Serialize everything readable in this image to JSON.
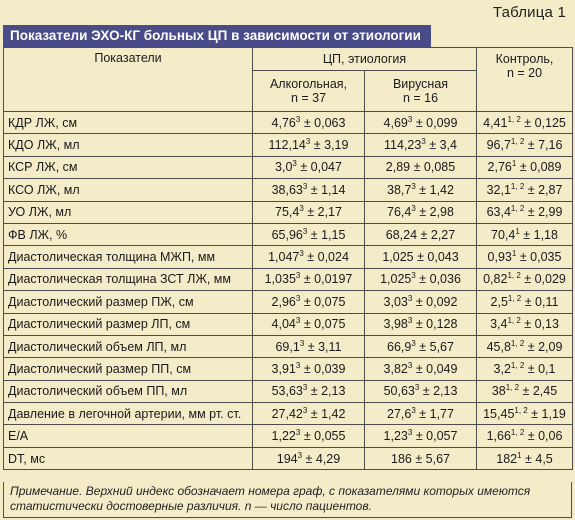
{
  "table_number": "Таблица 1",
  "title": "Показатели ЭХО-КГ больных ЦП в зависимости от этиологии",
  "header": {
    "col0": "Показатели",
    "group": "ЦП, этиология",
    "col1_line1": "Алкогольная,",
    "col1_line2": "n = 37",
    "col2_line1": "Вирусная",
    "col2_line2": "n = 16",
    "col3_line1": "Контроль,",
    "col3_line2": "n = 20"
  },
  "rows": [
    {
      "name": "КДР ЛЖ, см",
      "c1": [
        "4,76",
        "3",
        " ± 0,063"
      ],
      "c2": [
        "4,69",
        "3",
        " ± 0,099"
      ],
      "c3": [
        "4,41",
        "1, 2",
        " ± 0,125"
      ]
    },
    {
      "name": "КДО ЛЖ, мл",
      "c1": [
        "112,14",
        "3",
        " ± 3,19"
      ],
      "c2": [
        "114,23",
        "3",
        " ± 3,4"
      ],
      "c3": [
        "96,7",
        "1, 2",
        " ± 7,16"
      ]
    },
    {
      "name": "КСР ЛЖ, см",
      "c1": [
        "3,0",
        "3",
        " ± 0,047"
      ],
      "c2": [
        "2,89 ± 0,085",
        "",
        ""
      ],
      "c3": [
        "2,76",
        "1",
        " ± 0,089"
      ]
    },
    {
      "name": "КСО ЛЖ, мл",
      "c1": [
        "38,63",
        "3",
        " ± 1,14"
      ],
      "c2": [
        "38,7",
        "3",
        " ± 1,42"
      ],
      "c3": [
        "32,1",
        "1, 2",
        " ± 2,87"
      ]
    },
    {
      "name": "УО ЛЖ, мл",
      "c1": [
        "75,4",
        "3",
        " ± 2,17"
      ],
      "c2": [
        "76,4",
        "3",
        " ± 2,98"
      ],
      "c3": [
        "63,4",
        "1, 2",
        " ± 2,99"
      ]
    },
    {
      "name": "ФВ ЛЖ, %",
      "c1": [
        "65,96",
        "3",
        " ± 1,15"
      ],
      "c2": [
        "68,24 ± 2,27",
        "",
        ""
      ],
      "c3": [
        "70,4",
        "1",
        " ± 1,18"
      ]
    },
    {
      "name": "Диастолическая толщина МЖП, мм",
      "c1": [
        "1,047",
        "3",
        " ± 0,024"
      ],
      "c2": [
        "1,025 ± 0,043",
        "",
        ""
      ],
      "c3": [
        "0,93",
        "1",
        " ± 0,035"
      ]
    },
    {
      "name": "Диастолическая толщина ЗСТ ЛЖ, мм",
      "c1": [
        "1,035",
        "3",
        " ± 0,0197"
      ],
      "c2": [
        "1,025",
        "3",
        " ± 0,036"
      ],
      "c3": [
        "0,82",
        "1, 2",
        " ± 0,029"
      ]
    },
    {
      "name": "Диастолический размер ПЖ, см",
      "c1": [
        "2,96",
        "3",
        " ± 0,075"
      ],
      "c2": [
        "3,03",
        "3",
        " ± 0,092"
      ],
      "c3": [
        "2,5",
        "1, 2",
        " ± 0,11"
      ]
    },
    {
      "name": "Диастолический размер ЛП, см",
      "c1": [
        "4,04",
        "3",
        " ± 0,075"
      ],
      "c2": [
        "3,98",
        "3",
        " ± 0,128"
      ],
      "c3": [
        "3,4",
        "1, 2",
        " ± 0,13"
      ]
    },
    {
      "name": "Диастолический объем ЛП, мл",
      "c1": [
        "69,1",
        "3",
        " ± 3,11"
      ],
      "c2": [
        "66,9",
        "3",
        " ± 5,67"
      ],
      "c3": [
        "45,8",
        "1, 2",
        " ± 2,09"
      ]
    },
    {
      "name": "Диастолический размер ПП, см",
      "c1": [
        "3,91",
        "3",
        " ± 0,039"
      ],
      "c2": [
        "3,82",
        "3",
        " ± 0,049"
      ],
      "c3": [
        "3,2",
        "1, 2",
        " ± 0,1"
      ]
    },
    {
      "name": "Диастолический объем ПП, мл",
      "c1": [
        "53,63",
        "3",
        " ± 2,13"
      ],
      "c2": [
        "50,63",
        "3",
        " ± 2,13"
      ],
      "c3": [
        "38",
        "1, 2",
        " ± 2,45"
      ]
    },
    {
      "name": "Давление в легочной артерии, мм рт. ст.",
      "c1": [
        "27,42",
        "3",
        " ± 1,42"
      ],
      "c2": [
        "27,6",
        "3",
        " ± 1,77"
      ],
      "c3": [
        "15,45",
        "1, 2",
        " ± 1,19"
      ]
    },
    {
      "name": "Е/А",
      "c1": [
        "1,22",
        "3",
        " ± 0,055"
      ],
      "c2": [
        "1,23",
        "3",
        " ± 0,057"
      ],
      "c3": [
        "1,66",
        "1, 2",
        " ± 0,06"
      ]
    },
    {
      "name": "DT, мс",
      "c1": [
        "194",
        "3",
        " ± 4,29"
      ],
      "c2": [
        "186 ± 5,67",
        "",
        ""
      ],
      "c3": [
        "182",
        "1",
        " ± 4,5"
      ]
    }
  ],
  "note_line1": "Примечание. Верхний индекс обозначает номера граф, с показателями которых имеются",
  "note_line2": "статистически достоверные различия. n — число пациентов."
}
